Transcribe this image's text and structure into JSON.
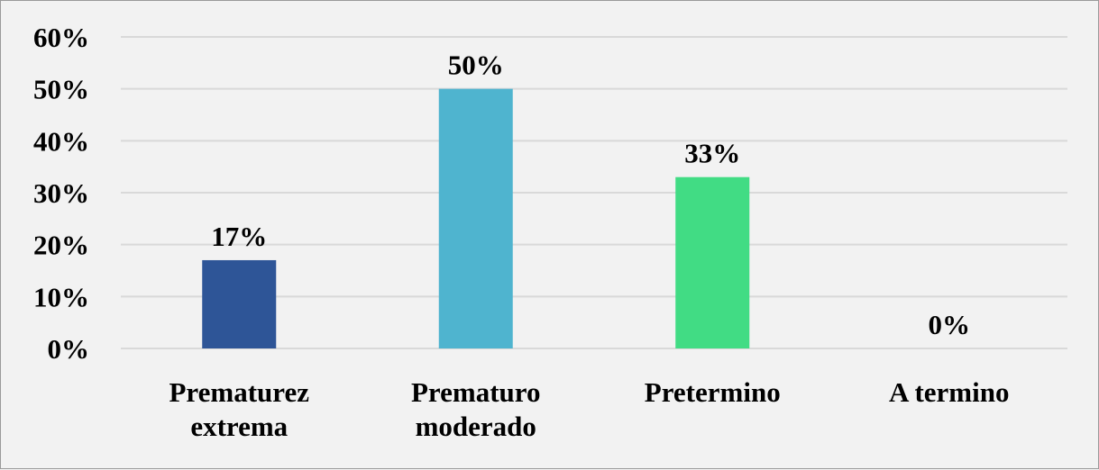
{
  "chart_data": {
    "type": "bar",
    "categories": [
      [
        "Prematurez",
        "extrema"
      ],
      [
        "Prematuro",
        "moderado"
      ],
      [
        "Pretermino"
      ],
      [
        "A termino"
      ]
    ],
    "values": [
      17,
      50,
      33,
      0
    ],
    "value_labels": [
      "17%",
      "50%",
      "33%",
      "0%"
    ],
    "colors": [
      "#2e5597",
      "#4fb4cf",
      "#41dc84",
      "#41dc84"
    ],
    "ylim": [
      0,
      60
    ],
    "yticks": [
      0,
      10,
      20,
      30,
      40,
      50,
      60
    ],
    "ytick_labels": [
      "0%",
      "10%",
      "20%",
      "30%",
      "40%",
      "50%",
      "60%"
    ],
    "title": "",
    "xlabel": "",
    "ylabel": "",
    "grid": true,
    "legend": "none",
    "background": "#f2f2f2"
  }
}
